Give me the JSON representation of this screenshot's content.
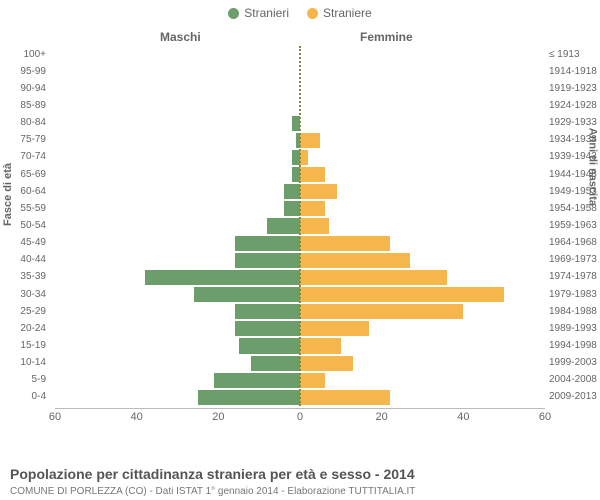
{
  "chart": {
    "type": "population-pyramid",
    "legend": [
      {
        "label": "Stranieri",
        "color": "#6b9e6b"
      },
      {
        "label": "Straniere",
        "color": "#f5b74c"
      }
    ],
    "header_left": "Maschi",
    "header_right": "Femmine",
    "y_label_left": "Fasce di età",
    "y_label_right": "Anni di nascita",
    "age_groups": [
      "100+",
      "95-99",
      "90-94",
      "85-89",
      "80-84",
      "75-79",
      "70-74",
      "65-69",
      "60-64",
      "55-59",
      "50-54",
      "45-49",
      "40-44",
      "35-39",
      "30-34",
      "25-29",
      "20-24",
      "15-19",
      "10-14",
      "5-9",
      "0-4"
    ],
    "birth_years": [
      "≤ 1913",
      "1914-1918",
      "1919-1923",
      "1924-1928",
      "1929-1933",
      "1934-1938",
      "1939-1943",
      "1944-1948",
      "1949-1953",
      "1954-1958",
      "1959-1963",
      "1964-1968",
      "1969-1973",
      "1974-1978",
      "1979-1983",
      "1984-1988",
      "1989-1993",
      "1994-1998",
      "1999-2003",
      "2004-2008",
      "2009-2013"
    ],
    "male_values": [
      0,
      0,
      0,
      0,
      2,
      1,
      2,
      2,
      4,
      4,
      8,
      16,
      16,
      38,
      26,
      16,
      16,
      15,
      12,
      21,
      25
    ],
    "female_values": [
      0,
      0,
      0,
      0,
      0,
      5,
      2,
      6,
      9,
      6,
      7,
      22,
      27,
      36,
      50,
      40,
      17,
      10,
      13,
      6,
      22
    ],
    "male_color": "#6b9e6b",
    "female_color": "#f5b74c",
    "x_max": 60,
    "x_ticks_left": [
      60,
      40,
      20,
      0
    ],
    "x_ticks_right": [
      20,
      40,
      60
    ],
    "background_color": "#ffffff",
    "axis_color": "#bbbbbb",
    "text_color": "#666666",
    "title": "Popolazione per cittadinanza straniera per età e sesso - 2014",
    "subtitle": "COMUNE DI PORLEZZA (CO) - Dati ISTAT 1° gennaio 2014 - Elaborazione TUTTITALIA.IT",
    "title_fontsize": 14,
    "subtitle_fontsize": 10,
    "label_fontsize": 10
  }
}
